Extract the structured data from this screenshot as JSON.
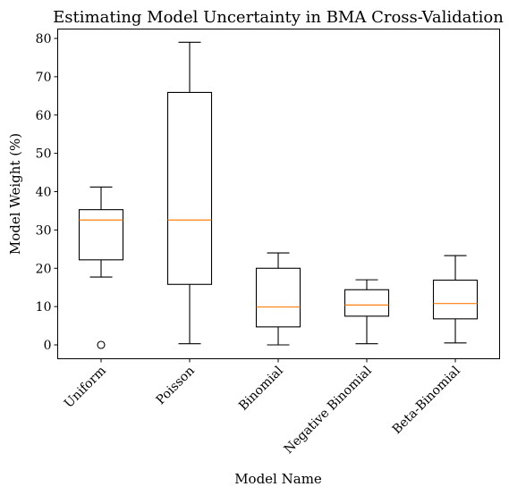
{
  "chart_data": {
    "type": "box",
    "title": "Estimating Model Uncertainty in BMA Cross-Validation",
    "xlabel": "Model Name",
    "ylabel": "Model Weight (%)",
    "ylim": [
      -3.5,
      83
    ],
    "yticks": [
      0,
      10,
      20,
      30,
      40,
      50,
      60,
      70,
      80
    ],
    "grid": false,
    "colors": {
      "box": "#000000",
      "median": "#ff7f0e"
    },
    "categories": [
      "Uniform",
      "Poisson",
      "Binomial",
      "Negative Binomial",
      "Beta-Binomial"
    ],
    "boxes": [
      {
        "name": "Uniform",
        "whislo": 17.7,
        "q1": 22.2,
        "median": 32.6,
        "q3": 35.3,
        "whishi": 41.2,
        "fliers": [
          0
        ]
      },
      {
        "name": "Poisson",
        "whislo": 0.3,
        "q1": 15.8,
        "median": 32.6,
        "q3": 65.9,
        "whishi": 79.0,
        "fliers": []
      },
      {
        "name": "Binomial",
        "whislo": 0.0,
        "q1": 4.7,
        "median": 9.9,
        "q3": 20.0,
        "whishi": 24.0,
        "fliers": []
      },
      {
        "name": "Negative Binomial",
        "whislo": 0.3,
        "q1": 7.5,
        "median": 10.4,
        "q3": 14.4,
        "whishi": 17.0,
        "fliers": []
      },
      {
        "name": "Beta-Binomial",
        "whislo": 0.5,
        "q1": 6.8,
        "median": 10.8,
        "q3": 16.9,
        "whishi": 23.3,
        "fliers": []
      }
    ]
  }
}
